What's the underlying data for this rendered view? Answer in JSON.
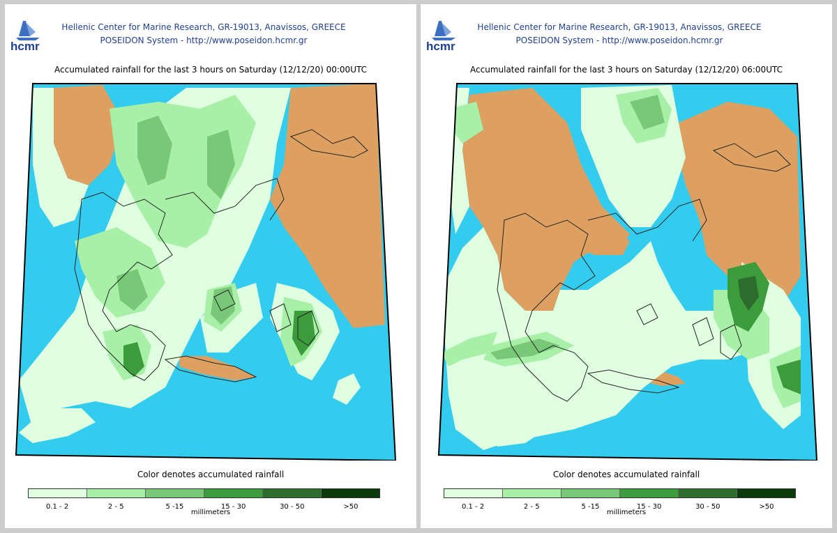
{
  "panels": [
    {
      "header_line1": "Hellenic Center for Marine Research, GR-19013, Anavissos, GREECE",
      "header_line2": "POSEIDON System - http://www.poseidon.hcmr.gr",
      "logo_text": "hcmr",
      "title": "Accumulated rainfall for the last 3 hours on Saturday (12/12/20) 00:00UTC"
    },
    {
      "header_line1": "Hellenic Center for Marine Research, GR-19013, Anavissos, GREECE",
      "header_line2": "POSEIDON System - http://www.poseidon.hcmr.gr",
      "logo_text": "hcmr",
      "title": "Accumulated rainfall for the last 3 hours on Saturday (12/12/20) 06:00UTC"
    }
  ],
  "legend": {
    "caption": "Color denotes accumulated rainfall",
    "units": "millimeters",
    "classes": [
      {
        "label": "0.1 - 2",
        "color": "#e0ffe0"
      },
      {
        "label": "2 - 5",
        "color": "#a8f0a8"
      },
      {
        "label": "5 -15",
        "color": "#78c878"
      },
      {
        "label": "15 - 30",
        "color": "#3c9c3c"
      },
      {
        "label": "30 - 50",
        "color": "#2c6c2c"
      },
      {
        "label": ">50",
        "color": "#0a3a0a"
      }
    ]
  },
  "map_colors": {
    "sea": "#33ccee",
    "land_no_rain": "#dda060",
    "coastline": "#222222"
  }
}
